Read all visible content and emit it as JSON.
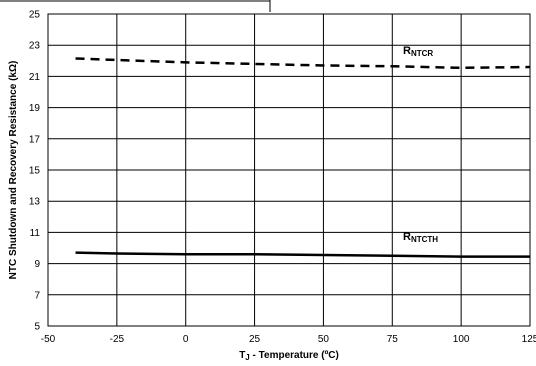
{
  "chart_data": {
    "type": "line",
    "xlabel_main": "T",
    "xlabel_sub": "J",
    "xlabel_rest": " - Temperature (ºC)",
    "ylabel": "NTC Shutdown and Recovery Resistance (kΩ)",
    "xlim": [
      -50,
      125
    ],
    "ylim": [
      5,
      25
    ],
    "xticks": [
      -50,
      -25,
      0,
      25,
      50,
      75,
      100,
      125
    ],
    "yticks": [
      5,
      7,
      9,
      11,
      13,
      15,
      17,
      19,
      21,
      23,
      25
    ],
    "grid": "vertical-and-horizontal",
    "series": [
      {
        "name_main": "R",
        "name_sub": "NTCR",
        "style": "dashed",
        "color": "#000000",
        "x": [
          -40,
          -25,
          0,
          25,
          50,
          75,
          100,
          125
        ],
        "y": [
          22.15,
          22.05,
          21.9,
          21.8,
          21.7,
          21.65,
          21.55,
          21.6
        ]
      },
      {
        "name_main": "R",
        "name_sub": "NTCTH",
        "style": "solid",
        "color": "#000000",
        "x": [
          -40,
          -25,
          0,
          25,
          50,
          75,
          100,
          125
        ],
        "y": [
          9.7,
          9.65,
          9.6,
          9.6,
          9.55,
          9.5,
          9.45,
          9.45
        ]
      }
    ]
  }
}
